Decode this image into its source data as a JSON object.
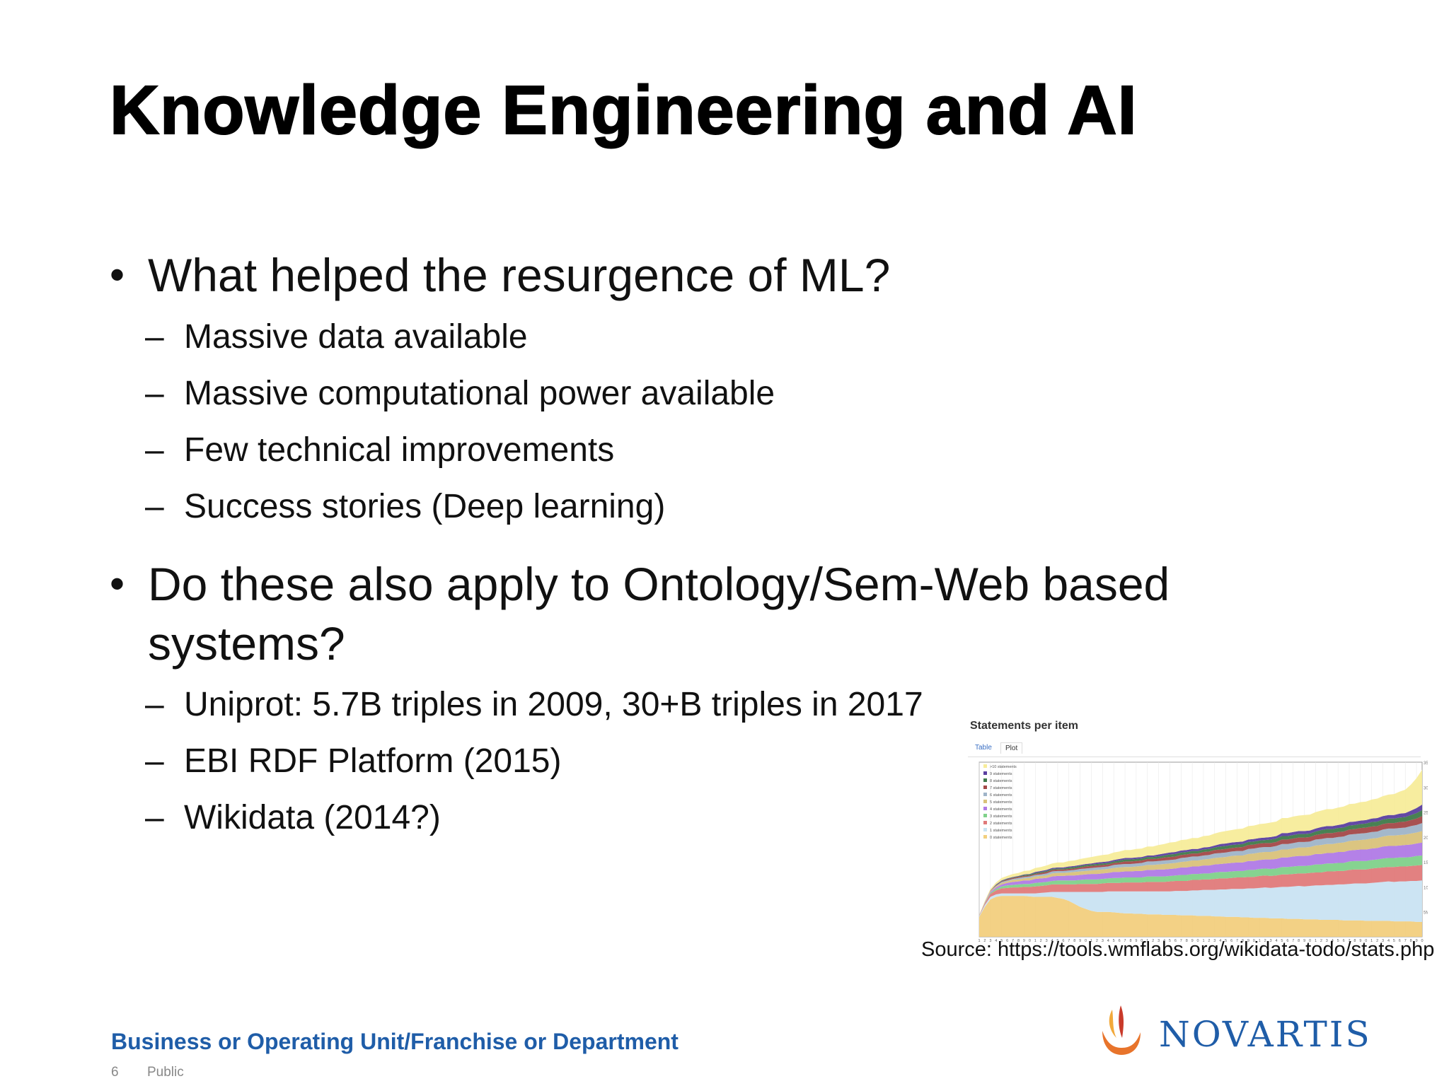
{
  "slide": {
    "title": "Knowledge Engineering and AI",
    "bullets": [
      {
        "lines": [
          "What helped the resurgence of ML?"
        ],
        "subs": [
          "Massive data available",
          "Massive computational power available",
          "Few technical improvements",
          "Success stories (Deep learning)"
        ]
      },
      {
        "lines": [
          "Do these also apply to Ontology/Sem-Web based",
          "systems?"
        ],
        "subs": [
          "Uniprot: 5.7B triples in 2009, 30+B triples in 2017",
          "EBI RDF Platform (2015)",
          "Wikidata (2014?)"
        ]
      }
    ],
    "bullet_glyph": "•",
    "dash_glyph": "–"
  },
  "figure": {
    "title": "Statements per item",
    "tabs": [
      "Table",
      "Plot"
    ],
    "source": "Source: https://tools.wmflabs.org/wikidata-todo/stats.php"
  },
  "chart_data": {
    "type": "area",
    "title": "Statements per item",
    "stacked": true,
    "y_ticks": [
      "5M",
      "10M",
      "15M",
      "20M",
      "25M",
      "30M",
      "35M"
    ],
    "ylim": [
      0,
      35000000
    ],
    "legend_position": "top-left",
    "x": [
      1,
      2,
      3,
      4,
      5,
      6,
      7,
      8,
      9,
      10,
      11,
      12,
      13,
      14,
      15,
      16,
      17,
      18,
      19,
      20,
      21,
      22,
      23,
      24,
      25,
      26,
      27,
      28,
      29,
      30,
      31,
      32,
      33,
      34,
      35,
      36,
      37,
      38,
      39,
      40,
      41,
      42,
      43,
      44,
      45,
      46,
      47,
      48,
      49,
      50,
      51,
      52,
      53,
      54,
      55,
      56,
      57,
      58,
      59,
      60,
      61,
      62,
      63,
      64,
      65,
      66,
      67,
      68,
      69,
      70,
      71,
      72,
      73,
      74,
      75,
      76,
      77,
      78,
      79,
      80
    ],
    "series": [
      {
        "name": "0 statements",
        "color": "#f2cf7e",
        "values": [
          4.0,
          6.0,
          7.5,
          8.0,
          8.2,
          8.2,
          8.2,
          8.2,
          8.2,
          8.1,
          8.0,
          8.0,
          8.0,
          8.0,
          7.8,
          7.6,
          7.2,
          6.6,
          6.0,
          5.6,
          5.2,
          5.0,
          5.0,
          5.0,
          4.9,
          4.8,
          4.7,
          4.7,
          4.6,
          4.6,
          4.5,
          4.5,
          4.5,
          4.4,
          4.4,
          4.4,
          4.3,
          4.3,
          4.3,
          4.2,
          4.2,
          4.2,
          4.1,
          4.1,
          4.0,
          4.0,
          4.0,
          3.9,
          3.9,
          3.8,
          3.8,
          3.8,
          3.7,
          3.7,
          3.7,
          3.6,
          3.6,
          3.6,
          3.5,
          3.5,
          3.5,
          3.4,
          3.4,
          3.4,
          3.4,
          3.3,
          3.3,
          3.3,
          3.3,
          3.2,
          3.2,
          3.2,
          3.2,
          3.2,
          3.1,
          3.1,
          3.1,
          3.1,
          3.0,
          3.0
        ]
      },
      {
        "name": "1 statements",
        "color": "#c9e3f2",
        "values": [
          0.2,
          0.4,
          0.5,
          0.5,
          0.5,
          0.5,
          0.5,
          0.5,
          0.5,
          0.6,
          0.7,
          0.8,
          0.9,
          1.0,
          1.2,
          1.4,
          1.8,
          2.4,
          3.0,
          3.4,
          3.8,
          4.0,
          4.0,
          4.1,
          4.2,
          4.3,
          4.4,
          4.4,
          4.5,
          4.5,
          4.6,
          4.6,
          4.6,
          4.7,
          4.7,
          4.8,
          4.9,
          4.9,
          5.0,
          5.1,
          5.2,
          5.2,
          5.3,
          5.4,
          5.5,
          5.6,
          5.6,
          5.7,
          5.8,
          5.9,
          6.0,
          6.1,
          6.1,
          6.2,
          6.3,
          6.4,
          6.5,
          6.6,
          6.6,
          6.7,
          6.8,
          6.9,
          7.0,
          7.0,
          7.1,
          7.2,
          7.3,
          7.4,
          7.4,
          7.5,
          7.6,
          7.7,
          7.8,
          7.9,
          7.9,
          8.0,
          8.0,
          8.1,
          8.2,
          8.3
        ]
      },
      {
        "name": "2 statements",
        "color": "#e07a7a",
        "values": [
          0.1,
          0.3,
          0.6,
          0.8,
          1.0,
          1.1,
          1.2,
          1.2,
          1.3,
          1.3,
          1.4,
          1.4,
          1.4,
          1.5,
          1.5,
          1.5,
          1.5,
          1.5,
          1.6,
          1.6,
          1.6,
          1.6,
          1.7,
          1.7,
          1.7,
          1.7,
          1.8,
          1.8,
          1.8,
          1.8,
          1.9,
          1.9,
          1.9,
          1.9,
          2.0,
          2.0,
          2.0,
          2.0,
          2.1,
          2.1,
          2.1,
          2.1,
          2.2,
          2.2,
          2.2,
          2.2,
          2.3,
          2.3,
          2.3,
          2.3,
          2.4,
          2.4,
          2.4,
          2.4,
          2.5,
          2.5,
          2.5,
          2.5,
          2.6,
          2.6,
          2.6,
          2.6,
          2.7,
          2.7,
          2.7,
          2.7,
          2.8,
          2.8,
          2.8,
          2.8,
          2.9,
          2.9,
          2.9,
          2.9,
          3.0,
          3.0,
          3.0,
          3.0,
          3.1,
          3.1
        ]
      },
      {
        "name": "3 statements",
        "color": "#7fd18a",
        "values": [
          0.0,
          0.1,
          0.2,
          0.3,
          0.4,
          0.5,
          0.5,
          0.6,
          0.6,
          0.6,
          0.7,
          0.7,
          0.7,
          0.7,
          0.8,
          0.8,
          0.8,
          0.8,
          0.8,
          0.9,
          0.9,
          0.9,
          0.9,
          0.9,
          1.0,
          1.0,
          1.0,
          1.0,
          1.0,
          1.0,
          1.1,
          1.1,
          1.1,
          1.1,
          1.1,
          1.1,
          1.2,
          1.2,
          1.2,
          1.2,
          1.2,
          1.2,
          1.3,
          1.3,
          1.3,
          1.3,
          1.3,
          1.3,
          1.4,
          1.4,
          1.4,
          1.4,
          1.4,
          1.4,
          1.5,
          1.5,
          1.5,
          1.5,
          1.5,
          1.5,
          1.6,
          1.6,
          1.6,
          1.6,
          1.6,
          1.6,
          1.7,
          1.7,
          1.7,
          1.7,
          1.7,
          1.7,
          1.8,
          1.8,
          1.8,
          1.8,
          1.8,
          1.8,
          1.9,
          1.9
        ]
      },
      {
        "name": "4 statements",
        "color": "#b07ae6",
        "values": [
          0.0,
          0.1,
          0.2,
          0.3,
          0.4,
          0.5,
          0.6,
          0.6,
          0.7,
          0.7,
          0.8,
          0.8,
          0.8,
          0.9,
          0.9,
          0.9,
          1.0,
          1.0,
          1.0,
          1.0,
          1.1,
          1.1,
          1.1,
          1.1,
          1.2,
          1.2,
          1.2,
          1.2,
          1.3,
          1.3,
          1.3,
          1.3,
          1.4,
          1.4,
          1.4,
          1.4,
          1.5,
          1.5,
          1.5,
          1.5,
          1.6,
          1.6,
          1.6,
          1.6,
          1.7,
          1.7,
          1.7,
          1.7,
          1.8,
          1.8,
          1.8,
          1.8,
          1.9,
          1.9,
          1.9,
          1.9,
          2.0,
          2.0,
          2.0,
          2.0,
          2.1,
          2.1,
          2.1,
          2.1,
          2.2,
          2.2,
          2.2,
          2.2,
          2.3,
          2.3,
          2.3,
          2.3,
          2.4,
          2.4,
          2.4,
          2.4,
          2.5,
          2.5,
          2.5,
          2.6
        ]
      },
      {
        "name": "5 statements",
        "color": "#d9c27a",
        "values": [
          0.0,
          0.1,
          0.1,
          0.2,
          0.3,
          0.3,
          0.4,
          0.4,
          0.4,
          0.5,
          0.5,
          0.5,
          0.5,
          0.6,
          0.6,
          0.6,
          0.6,
          0.7,
          0.7,
          0.7,
          0.7,
          0.8,
          0.8,
          0.8,
          0.8,
          0.9,
          0.9,
          0.9,
          0.9,
          1.0,
          1.0,
          1.0,
          1.0,
          1.1,
          1.1,
          1.1,
          1.1,
          1.2,
          1.2,
          1.2,
          1.2,
          1.3,
          1.3,
          1.3,
          1.3,
          1.4,
          1.4,
          1.4,
          1.4,
          1.5,
          1.5,
          1.5,
          1.5,
          1.6,
          1.6,
          1.6,
          1.6,
          1.7,
          1.7,
          1.7,
          1.7,
          1.8,
          1.8,
          1.8,
          1.8,
          1.9,
          1.9,
          1.9,
          1.9,
          2.0,
          2.0,
          2.0,
          2.0,
          2.1,
          2.1,
          2.1,
          2.1,
          2.2,
          2.2,
          2.3
        ]
      },
      {
        "name": "6 statements",
        "color": "#9fb4c8",
        "values": [
          0.0,
          0.0,
          0.1,
          0.1,
          0.2,
          0.2,
          0.2,
          0.3,
          0.3,
          0.3,
          0.3,
          0.3,
          0.4,
          0.4,
          0.4,
          0.4,
          0.4,
          0.4,
          0.5,
          0.5,
          0.5,
          0.5,
          0.5,
          0.5,
          0.6,
          0.6,
          0.6,
          0.6,
          0.6,
          0.6,
          0.7,
          0.7,
          0.7,
          0.7,
          0.7,
          0.7,
          0.8,
          0.8,
          0.8,
          0.8,
          0.8,
          0.8,
          0.9,
          0.9,
          0.9,
          0.9,
          0.9,
          0.9,
          1.0,
          1.0,
          1.0,
          1.0,
          1.0,
          1.0,
          1.1,
          1.1,
          1.1,
          1.1,
          1.1,
          1.1,
          1.2,
          1.2,
          1.2,
          1.2,
          1.2,
          1.2,
          1.3,
          1.3,
          1.3,
          1.3,
          1.3,
          1.3,
          1.4,
          1.4,
          1.4,
          1.4,
          1.4,
          1.5,
          1.5,
          1.6
        ]
      },
      {
        "name": "7 statements",
        "color": "#a34848",
        "values": [
          0.0,
          0.0,
          0.1,
          0.1,
          0.1,
          0.2,
          0.2,
          0.2,
          0.2,
          0.2,
          0.2,
          0.3,
          0.3,
          0.3,
          0.3,
          0.3,
          0.3,
          0.3,
          0.3,
          0.4,
          0.4,
          0.4,
          0.4,
          0.4,
          0.4,
          0.4,
          0.5,
          0.5,
          0.5,
          0.5,
          0.5,
          0.5,
          0.5,
          0.6,
          0.6,
          0.6,
          0.6,
          0.6,
          0.6,
          0.6,
          0.7,
          0.7,
          0.7,
          0.7,
          0.7,
          0.7,
          0.7,
          0.8,
          0.8,
          0.8,
          0.8,
          0.8,
          0.8,
          0.8,
          0.9,
          0.9,
          0.9,
          0.9,
          0.9,
          0.9,
          0.9,
          1.0,
          1.0,
          1.0,
          1.0,
          1.0,
          1.0,
          1.0,
          1.1,
          1.1,
          1.1,
          1.1,
          1.1,
          1.1,
          1.1,
          1.2,
          1.2,
          1.2,
          1.3,
          1.4
        ]
      },
      {
        "name": "8 statements",
        "color": "#3f7a4a",
        "values": [
          0.0,
          0.0,
          0.0,
          0.1,
          0.1,
          0.1,
          0.1,
          0.1,
          0.2,
          0.2,
          0.2,
          0.2,
          0.2,
          0.2,
          0.2,
          0.2,
          0.3,
          0.3,
          0.3,
          0.3,
          0.3,
          0.3,
          0.3,
          0.3,
          0.3,
          0.4,
          0.4,
          0.4,
          0.4,
          0.4,
          0.4,
          0.4,
          0.4,
          0.4,
          0.5,
          0.5,
          0.5,
          0.5,
          0.5,
          0.5,
          0.5,
          0.5,
          0.5,
          0.6,
          0.6,
          0.6,
          0.6,
          0.6,
          0.6,
          0.6,
          0.6,
          0.6,
          0.7,
          0.7,
          0.7,
          0.7,
          0.7,
          0.7,
          0.7,
          0.7,
          0.7,
          0.8,
          0.8,
          0.8,
          0.8,
          0.8,
          0.8,
          0.8,
          0.8,
          0.8,
          0.9,
          0.9,
          0.9,
          0.9,
          0.9,
          0.9,
          0.9,
          1.0,
          1.1,
          1.2
        ]
      },
      {
        "name": "9 statements",
        "color": "#5b3fa0",
        "values": [
          0.0,
          0.0,
          0.0,
          0.1,
          0.1,
          0.1,
          0.1,
          0.1,
          0.1,
          0.1,
          0.2,
          0.2,
          0.2,
          0.2,
          0.2,
          0.2,
          0.2,
          0.2,
          0.2,
          0.2,
          0.2,
          0.3,
          0.3,
          0.3,
          0.3,
          0.3,
          0.3,
          0.3,
          0.3,
          0.3,
          0.3,
          0.3,
          0.4,
          0.4,
          0.4,
          0.4,
          0.4,
          0.4,
          0.4,
          0.4,
          0.4,
          0.4,
          0.4,
          0.5,
          0.5,
          0.5,
          0.5,
          0.5,
          0.5,
          0.5,
          0.5,
          0.5,
          0.5,
          0.5,
          0.6,
          0.6,
          0.6,
          0.6,
          0.6,
          0.6,
          0.6,
          0.6,
          0.6,
          0.6,
          0.6,
          0.7,
          0.7,
          0.7,
          0.7,
          0.7,
          0.7,
          0.7,
          0.7,
          0.7,
          0.7,
          0.8,
          0.8,
          0.9,
          1.0,
          1.1
        ]
      },
      {
        "name": ">10 statements",
        "color": "#f7ec9a",
        "values": [
          0.1,
          0.2,
          0.3,
          0.4,
          0.5,
          0.5,
          0.6,
          0.6,
          0.7,
          0.7,
          0.8,
          0.8,
          0.9,
          0.9,
          1.0,
          1.0,
          1.1,
          1.1,
          1.2,
          1.2,
          1.3,
          1.3,
          1.4,
          1.4,
          1.5,
          1.5,
          1.6,
          1.6,
          1.7,
          1.7,
          1.8,
          1.8,
          1.9,
          1.9,
          2.0,
          2.0,
          2.1,
          2.1,
          2.2,
          2.2,
          2.3,
          2.3,
          2.4,
          2.4,
          2.5,
          2.5,
          2.6,
          2.6,
          2.7,
          2.7,
          2.8,
          2.8,
          2.9,
          2.9,
          3.0,
          3.0,
          3.1,
          3.1,
          3.2,
          3.2,
          3.3,
          3.3,
          3.4,
          3.4,
          3.5,
          3.5,
          3.6,
          3.6,
          3.7,
          3.7,
          3.8,
          3.9,
          4.0,
          4.1,
          4.2,
          4.4,
          4.7,
          5.2,
          6.0,
          7.0
        ]
      }
    ]
  },
  "footer": {
    "unit": "Business or Operating Unit/Franchise or Department",
    "page_number": "6",
    "classification": "Public",
    "logo_text": "NOVARTIS",
    "brand_blue": "#1f5da8",
    "logo_colors": [
      "#e8742b",
      "#f2a93b",
      "#c93a2a"
    ]
  }
}
